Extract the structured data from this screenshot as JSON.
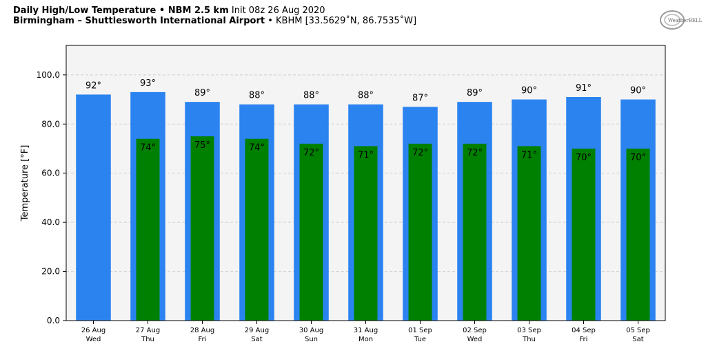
{
  "header": {
    "line1_bold": "Daily High/Low Temperature • NBM 2.5 km",
    "line1_normal": "Init 08z 26 Aug 2020",
    "line2_bold": "Birmingham – Shuttlesworth International Airport",
    "line2_normal": "• KBHM [33.5629˚N, 86.7535˚W]"
  },
  "logo": {
    "text": "WeatherBELL",
    "icon": "weatherbell-logo-icon"
  },
  "colors": {
    "high": "#2b83f0",
    "low": "#008000",
    "plot_bg": "#f4f4f4",
    "grid": "#cfcfcf"
  },
  "chart_data": {
    "type": "bar",
    "ylabel": "Temperature [°F]",
    "ylim": [
      0,
      112
    ],
    "yticks": [
      0,
      20,
      40,
      60,
      80,
      100
    ],
    "ytick_labels": [
      "0.0",
      "20.0",
      "40.0",
      "60.0",
      "80.0",
      "100.0"
    ],
    "grid": true,
    "categories": [
      "26 Aug",
      "27 Aug",
      "28 Aug",
      "29 Aug",
      "30 Aug",
      "31 Aug",
      "01 Sep",
      "02 Sep",
      "03 Sep",
      "04 Sep",
      "05 Sep"
    ],
    "days": [
      "Wed",
      "Thu",
      "Fri",
      "Sat",
      "Sun",
      "Mon",
      "Tue",
      "Wed",
      "Thu",
      "Fri",
      "Sat"
    ],
    "series": [
      {
        "values": [
          92,
          93,
          89,
          88,
          88,
          88,
          87,
          89,
          90,
          91,
          90
        ],
        "labels": [
          "92°",
          "93°",
          "89°",
          "88°",
          "88°",
          "88°",
          "87°",
          "89°",
          "90°",
          "91°",
          "90°"
        ]
      },
      {
        "values": [
          null,
          74,
          75,
          74,
          72,
          71,
          72,
          72,
          71,
          70,
          70
        ],
        "labels": [
          "",
          "74°",
          "75°",
          "74°",
          "72°",
          "71°",
          "72°",
          "72°",
          "71°",
          "70°",
          "70°"
        ]
      }
    ]
  }
}
